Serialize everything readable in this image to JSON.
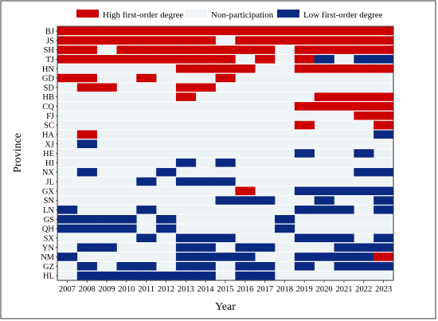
{
  "chart_data": {
    "type": "heatmap",
    "xlabel": "Year",
    "ylabel": "Province",
    "years": [
      "2007",
      "2008",
      "2009",
      "2010",
      "2011",
      "2012",
      "2013",
      "2014",
      "2015",
      "2016",
      "2017",
      "2018",
      "2019",
      "2020",
      "2021",
      "2022",
      "2023"
    ],
    "provinces": [
      "BJ",
      "JS",
      "SH",
      "TJ",
      "HN",
      "GD",
      "SD",
      "HB",
      "CQ",
      "FJ",
      "SC",
      "HA",
      "XJ",
      "HE",
      "HI",
      "NX",
      "JL",
      "GX",
      "SN",
      "LN",
      "GS",
      "QH",
      "SX",
      "YN",
      "NM",
      "GZ",
      "HL"
    ],
    "categories": [
      {
        "key": "H",
        "name": "High first-order degree",
        "color": "#cc0000"
      },
      {
        "key": "N",
        "name": "Non-participation",
        "color": "#f0f5f8"
      },
      {
        "key": "L",
        "name": "Low first-order degree",
        "color": "#0a2a82"
      }
    ],
    "legend": [
      "High first-order degree",
      "Non-participation",
      "Low first-order degree"
    ],
    "colors": {
      "high": "#cc0000",
      "none": "#f0f5f8",
      "low": "#0a2a82",
      "background": "#eef3f6"
    },
    "cells": {
      "BJ": [
        "H",
        "H",
        "H",
        "H",
        "H",
        "H",
        "H",
        "H",
        "H",
        "H",
        "H",
        "H",
        "H",
        "H",
        "H",
        "H",
        "H"
      ],
      "JS": [
        "H",
        "H",
        "H",
        "H",
        "H",
        "H",
        "H",
        "H",
        "N",
        "H",
        "H",
        "H",
        "H",
        "H",
        "H",
        "H",
        "H"
      ],
      "SH": [
        "H",
        "H",
        "N",
        "H",
        "H",
        "H",
        "H",
        "H",
        "H",
        "H",
        "H",
        "N",
        "H",
        "H",
        "H",
        "H",
        "H"
      ],
      "TJ": [
        "H",
        "H",
        "H",
        "H",
        "H",
        "H",
        "H",
        "H",
        "H",
        "N",
        "H",
        "N",
        "H",
        "L",
        "N",
        "L",
        "L"
      ],
      "HN": [
        "N",
        "N",
        "N",
        "N",
        "N",
        "N",
        "H",
        "H",
        "H",
        "H",
        "N",
        "N",
        "H",
        "H",
        "H",
        "H",
        "H"
      ],
      "GD": [
        "H",
        "H",
        "N",
        "N",
        "H",
        "N",
        "N",
        "N",
        "H",
        "N",
        "N",
        "N",
        "N",
        "N",
        "N",
        "N",
        "N"
      ],
      "SD": [
        "N",
        "H",
        "H",
        "N",
        "N",
        "N",
        "H",
        "H",
        "N",
        "N",
        "N",
        "N",
        "N",
        "N",
        "N",
        "N",
        "N"
      ],
      "HB": [
        "N",
        "N",
        "N",
        "N",
        "N",
        "N",
        "H",
        "N",
        "N",
        "N",
        "N",
        "N",
        "N",
        "H",
        "H",
        "H",
        "H"
      ],
      "CQ": [
        "N",
        "N",
        "N",
        "N",
        "N",
        "N",
        "N",
        "N",
        "N",
        "N",
        "N",
        "N",
        "H",
        "H",
        "H",
        "H",
        "H"
      ],
      "FJ": [
        "N",
        "N",
        "N",
        "N",
        "N",
        "N",
        "N",
        "N",
        "N",
        "N",
        "N",
        "N",
        "N",
        "N",
        "N",
        "H",
        "H"
      ],
      "SC": [
        "N",
        "N",
        "N",
        "N",
        "N",
        "N",
        "N",
        "N",
        "N",
        "N",
        "N",
        "N",
        "H",
        "N",
        "N",
        "N",
        "H"
      ],
      "HA": [
        "N",
        "H",
        "N",
        "N",
        "N",
        "N",
        "N",
        "N",
        "N",
        "N",
        "N",
        "N",
        "N",
        "N",
        "N",
        "N",
        "L"
      ],
      "XJ": [
        "N",
        "L",
        "N",
        "N",
        "N",
        "N",
        "N",
        "N",
        "N",
        "N",
        "N",
        "N",
        "N",
        "N",
        "N",
        "N",
        "N"
      ],
      "HE": [
        "N",
        "N",
        "N",
        "N",
        "N",
        "N",
        "N",
        "N",
        "N",
        "N",
        "N",
        "N",
        "L",
        "N",
        "N",
        "L",
        "N"
      ],
      "HI": [
        "N",
        "N",
        "N",
        "N",
        "N",
        "N",
        "L",
        "N",
        "L",
        "N",
        "N",
        "N",
        "N",
        "N",
        "N",
        "N",
        "N"
      ],
      "NX": [
        "N",
        "L",
        "N",
        "N",
        "N",
        "L",
        "N",
        "N",
        "N",
        "N",
        "N",
        "N",
        "N",
        "N",
        "N",
        "L",
        "L"
      ],
      "JL": [
        "N",
        "N",
        "N",
        "N",
        "L",
        "N",
        "L",
        "L",
        "L",
        "N",
        "N",
        "N",
        "N",
        "N",
        "N",
        "N",
        "N"
      ],
      "GX": [
        "N",
        "N",
        "N",
        "N",
        "N",
        "N",
        "N",
        "N",
        "N",
        "H",
        "N",
        "N",
        "L",
        "L",
        "L",
        "L",
        "L"
      ],
      "SN": [
        "N",
        "N",
        "N",
        "N",
        "N",
        "N",
        "N",
        "N",
        "L",
        "L",
        "L",
        "N",
        "N",
        "L",
        "N",
        "N",
        "L"
      ],
      "LN": [
        "L",
        "N",
        "N",
        "N",
        "L",
        "N",
        "N",
        "N",
        "N",
        "N",
        "N",
        "N",
        "L",
        "L",
        "L",
        "N",
        "L"
      ],
      "GS": [
        "L",
        "L",
        "L",
        "L",
        "N",
        "L",
        "N",
        "N",
        "N",
        "N",
        "N",
        "L",
        "N",
        "N",
        "N",
        "N",
        "N"
      ],
      "QH": [
        "L",
        "L",
        "L",
        "L",
        "N",
        "L",
        "N",
        "N",
        "N",
        "N",
        "N",
        "L",
        "N",
        "N",
        "N",
        "N",
        "N"
      ],
      "SX": [
        "N",
        "N",
        "N",
        "N",
        "L",
        "N",
        "L",
        "L",
        "L",
        "N",
        "N",
        "N",
        "L",
        "L",
        "L",
        "N",
        "L"
      ],
      "YN": [
        "N",
        "L",
        "L",
        "N",
        "N",
        "N",
        "L",
        "L",
        "N",
        "L",
        "L",
        "N",
        "N",
        "N",
        "L",
        "L",
        "L"
      ],
      "NM": [
        "L",
        "N",
        "N",
        "N",
        "N",
        "N",
        "L",
        "L",
        "L",
        "L",
        "N",
        "N",
        "L",
        "L",
        "L",
        "L",
        "H"
      ],
      "GZ": [
        "N",
        "L",
        "N",
        "L",
        "L",
        "N",
        "L",
        "L",
        "N",
        "L",
        "L",
        "N",
        "L",
        "N",
        "L",
        "L",
        "L"
      ],
      "HL": [
        "N",
        "L",
        "L",
        "L",
        "L",
        "L",
        "L",
        "L",
        "N",
        "L",
        "L",
        "N",
        "N",
        "N",
        "N",
        "N",
        "N"
      ]
    }
  }
}
